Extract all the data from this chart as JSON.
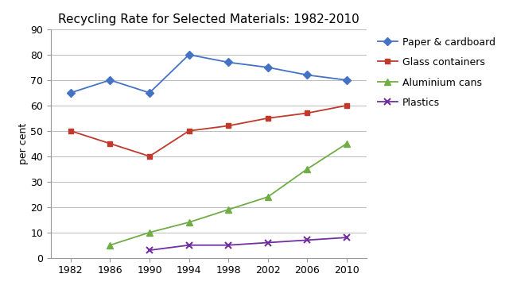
{
  "title": "Recycling Rate for Selected Materials: 1982-2010",
  "ylabel": "per cent",
  "years": [
    1982,
    1986,
    1990,
    1994,
    1998,
    2002,
    2006,
    2010
  ],
  "series": [
    {
      "label": "Paper & cardboard",
      "values": [
        65,
        70,
        65,
        80,
        77,
        75,
        72,
        70
      ],
      "color": "#4472C4",
      "marker": "D",
      "markersize": 5
    },
    {
      "label": "Glass containers",
      "values": [
        50,
        45,
        40,
        50,
        52,
        55,
        57,
        60
      ],
      "color": "#C0392B",
      "marker": "s",
      "markersize": 5
    },
    {
      "label": "Aluminium cans",
      "values": [
        null,
        5,
        10,
        14,
        19,
        24,
        35,
        45
      ],
      "color": "#70AD47",
      "marker": "^",
      "markersize": 6
    },
    {
      "label": "Plastics",
      "values": [
        null,
        null,
        3,
        5,
        5,
        6,
        7,
        8
      ],
      "color": "#7030A0",
      "marker": "x",
      "markersize": 6
    }
  ],
  "ylim": [
    0,
    90
  ],
  "yticks": [
    0,
    10,
    20,
    30,
    40,
    50,
    60,
    70,
    80,
    90
  ],
  "background_color": "#FFFFFF",
  "grid_color": "#BBBBBB",
  "title_fontsize": 11,
  "axis_fontsize": 9,
  "legend_fontsize": 9
}
